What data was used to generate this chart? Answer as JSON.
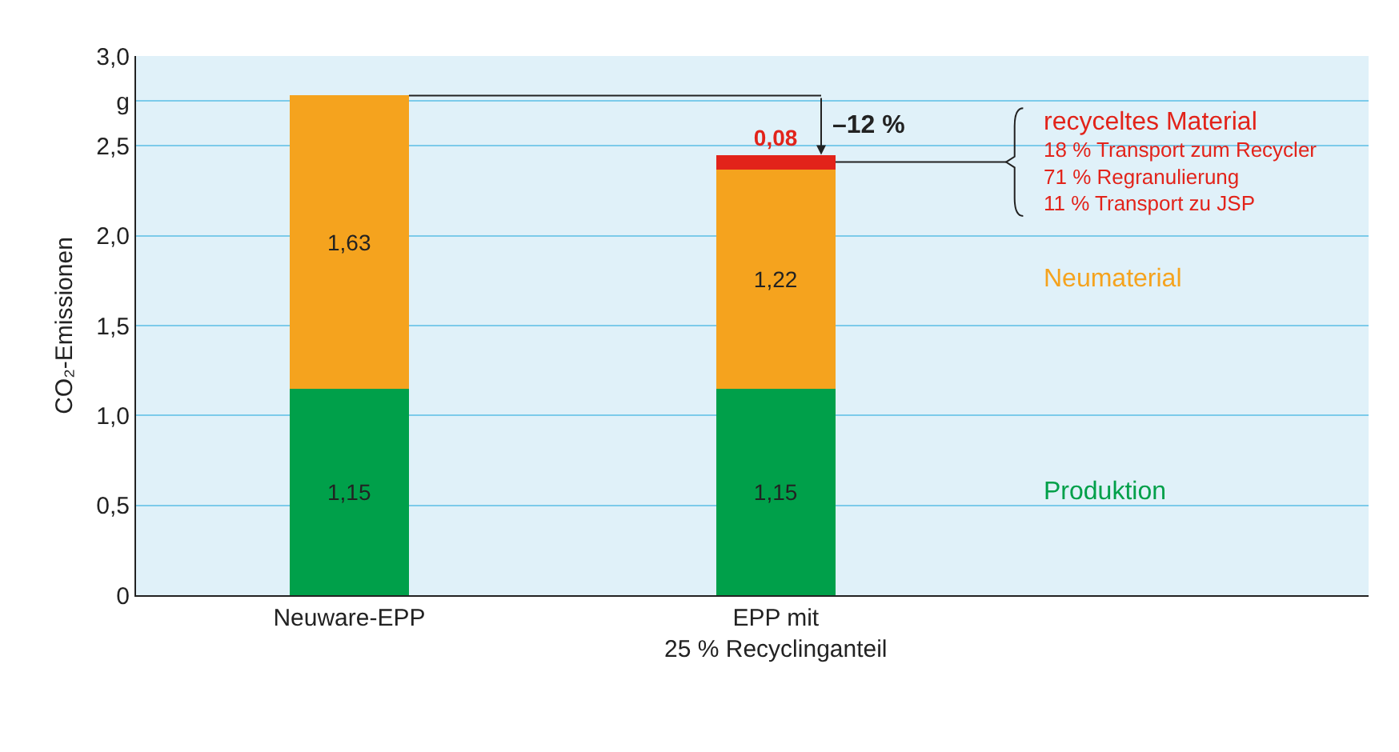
{
  "chart_data": {
    "type": "bar",
    "stacked": true,
    "ylabel": "CO₂-Emissionen",
    "categories": [
      "Neuware-EPP",
      "EPP mit\n25 % Recyclinganteil"
    ],
    "series": [
      {
        "name": "Produktion",
        "color": "#00a04a",
        "values": [
          1.15,
          1.15
        ],
        "value_labels": [
          "1,15",
          "1,15"
        ]
      },
      {
        "name": "Neumaterial",
        "color": "#f5a31e",
        "values": [
          1.63,
          1.22
        ],
        "value_labels": [
          "1,63",
          "1,22"
        ]
      },
      {
        "name": "recyceltes Material",
        "color": "#e2231a",
        "values": [
          null,
          0.08
        ],
        "value_labels": [
          null,
          "0,08"
        ]
      }
    ],
    "ylim": [
      0,
      3
    ],
    "yticks": [
      0,
      {
        "value": 0.5,
        "label": "0,5"
      },
      {
        "value": 1,
        "label": "1,0"
      },
      {
        "value": 1.5,
        "label": "1,5"
      },
      {
        "value": 2,
        "label": "2,0"
      },
      {
        "value": 2.5,
        "label": "2,5"
      },
      {
        "value": 2.75,
        "label": "g"
      },
      {
        "value": 3,
        "label": "3,0"
      }
    ],
    "grid": "y",
    "legend": false,
    "annotations": [
      "–12 %",
      "18 % Transport zum Recycler",
      "71 % Regranulierung",
      "11 % Transport zu JSP"
    ]
  }
}
